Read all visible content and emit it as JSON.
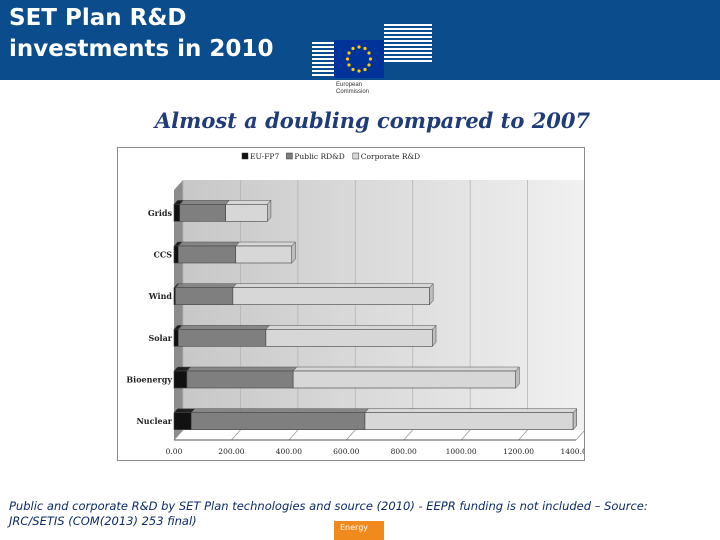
{
  "header": {
    "title_line1": "SET Plan R&D",
    "title_line2": "investments in 2010",
    "logo_text_line1": "European",
    "logo_text_line2": "Commission"
  },
  "subtitle": "Almost a doubling compared to 2007",
  "chart_data": {
    "type": "bar",
    "orientation": "horizontal",
    "stacked": true,
    "categories": [
      "Grids",
      "CCS",
      "Wind",
      "Solar",
      "Bioenergy",
      "Nuclear"
    ],
    "series": [
      {
        "name": "EU-FP7",
        "values": [
          20,
          15,
          5,
          15,
          45,
          60
        ],
        "color": "#111111"
      },
      {
        "name": "Public RD&D",
        "values": [
          160,
          200,
          200,
          305,
          370,
          605
        ],
        "color": "#7f7f7f"
      },
      {
        "name": "Corporate R&D",
        "values": [
          145,
          195,
          685,
          580,
          775,
          725
        ],
        "color": "#d7d7d7"
      }
    ],
    "xlim": [
      0,
      1400
    ],
    "xticks": [
      "0.00",
      "200.00",
      "400.00",
      "600.00",
      "800.00",
      "1000.00",
      "1200.00",
      "1400.00"
    ],
    "legend_position": "top",
    "grid": true
  },
  "footer": {
    "text_line1": "Public and corporate R&D by SET Plan technologies and source (2010) - EEPR funding is not included – Source:",
    "text_line2": "JRC/SETIS (COM(2013) 253 final)"
  },
  "badge": "Energy",
  "colors": {
    "header_bg": "#0b4d8c",
    "subtitle": "#1f3c78",
    "badge": "#f08a1d"
  }
}
